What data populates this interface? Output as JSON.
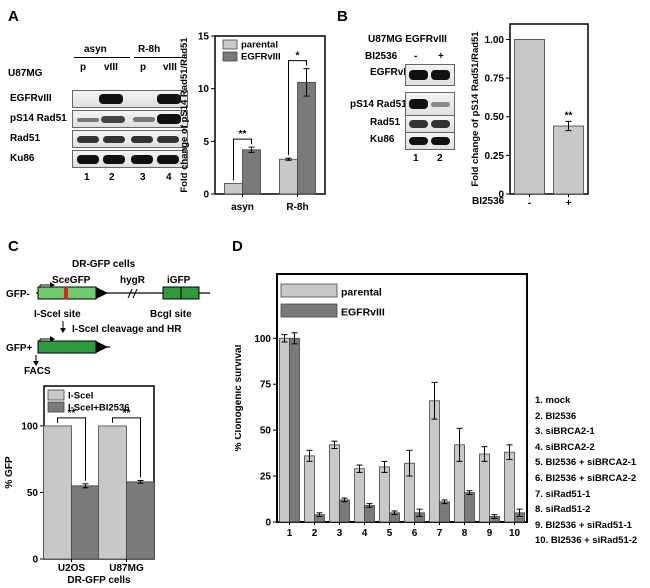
{
  "panels": {
    "a": "A",
    "b": "B",
    "c": "C",
    "d": "D"
  },
  "blot_a": {
    "cell_line": "U87MG",
    "groups": [
      "asyn",
      "R-8h"
    ],
    "lane_tags": [
      "p",
      "vIII",
      "p",
      "vIII"
    ],
    "rows": [
      "EGFRvIII",
      "pS14 Rad51",
      "Rad51",
      "Ku86"
    ],
    "lanes": [
      "1",
      "2",
      "3",
      "4"
    ]
  },
  "blot_b": {
    "title": "U87MG EGFRvIII",
    "treatment": "BI2536",
    "signs": [
      "-",
      "+"
    ],
    "rows": [
      "EGFRvIII",
      "pS14 Rad51",
      "Rad51",
      "Ku86"
    ],
    "lanes": [
      "1",
      "2"
    ]
  },
  "dr_gfp": {
    "title": "DR-GFP cells",
    "gfp_minus": "GFP-",
    "sce": "SceGFP",
    "hyg": "hygR",
    "igfp": "iGFP",
    "isce_site": "I-SceI site",
    "bcgi_site": "BcgI site",
    "step": "I-SceI cleavage and HR",
    "gfp_plus": "GFP+",
    "facs": "FACS"
  },
  "chart_data": [
    {
      "type": "bar",
      "id": "A",
      "categories": [
        "asyn",
        "R-8h"
      ],
      "series": [
        {
          "name": "parental",
          "values": [
            1.0,
            3.3
          ]
        },
        {
          "name": "EGFRvIII",
          "values": [
            4.2,
            10.6
          ]
        }
      ],
      "errors": [
        [
          0,
          0.1
        ],
        [
          0.25,
          1.3
        ]
      ],
      "ylabel": "Fold change of pS14 Rad51/Rad51",
      "ylim": [
        0,
        15
      ],
      "yticks": [
        "0",
        "5",
        "10",
        "15"
      ],
      "sig": [
        "**",
        "*"
      ],
      "colors": [
        "#c8c8c8",
        "#7a7a7a"
      ]
    },
    {
      "type": "bar",
      "id": "B",
      "categories": [
        "-",
        "+"
      ],
      "values": [
        1.0,
        0.44
      ],
      "errors": [
        0,
        0.03
      ],
      "xlabel": "BI2536",
      "ylabel": "Fold change of pS14 Rad51/Rad51",
      "ylim": [
        0,
        1.1
      ],
      "yticks": [
        "0",
        "0.25",
        "0.50",
        "0.75",
        "1.00"
      ],
      "sig": "**",
      "color": "#c8c8c8"
    },
    {
      "type": "bar",
      "id": "C",
      "categories": [
        "U2OS",
        "U87MG"
      ],
      "series": [
        {
          "name": "I-SceI",
          "values": [
            100,
            100
          ]
        },
        {
          "name": "I-SceI+BI2536",
          "values": [
            55,
            58
          ]
        }
      ],
      "errors": [
        [
          0,
          0
        ],
        [
          1.5,
          1
        ]
      ],
      "xlabel": "DR-GFP cells",
      "ylabel": "% GFP",
      "ylim": [
        0,
        130
      ],
      "yticks": [
        "0",
        "50",
        "100"
      ],
      "sig": [
        "**",
        "**"
      ],
      "colors": [
        "#c8c8c8",
        "#7a7a7a"
      ]
    },
    {
      "type": "bar",
      "id": "D",
      "categories": [
        "1",
        "2",
        "3",
        "4",
        "5",
        "6",
        "7",
        "8",
        "9",
        "10"
      ],
      "series": [
        {
          "name": "parental",
          "values": [
            100,
            36,
            42,
            29,
            30,
            32,
            66,
            42,
            37,
            38
          ]
        },
        {
          "name": "EGFRvIII",
          "values": [
            100,
            4,
            12,
            9,
            5,
            5,
            11,
            16,
            3,
            5
          ]
        }
      ],
      "errors": [
        [
          2,
          3,
          2,
          2,
          3,
          7,
          10,
          9,
          4,
          4
        ],
        [
          3,
          1,
          1,
          1,
          1,
          2,
          1,
          1,
          1,
          2
        ]
      ],
      "ylabel": "% Clonogenic survival",
      "ylim": [
        0,
        135
      ],
      "yticks": [
        "0",
        "25",
        "50",
        "75",
        "100"
      ],
      "colors": [
        "#c8c8c8",
        "#7a7a7a"
      ],
      "key": [
        "1. mock",
        "2. BI2536",
        "3. siBRCA2-1",
        "4. siBRCA2-2",
        "5. BI2536 + siBRCA2-1",
        "6. BI2536 + siBRCA2-2",
        "7. siRad51-1",
        "8. siRad51-2",
        "9. BI2536 + siRad51-1",
        "10. BI2536 + siRad51-2"
      ]
    }
  ]
}
